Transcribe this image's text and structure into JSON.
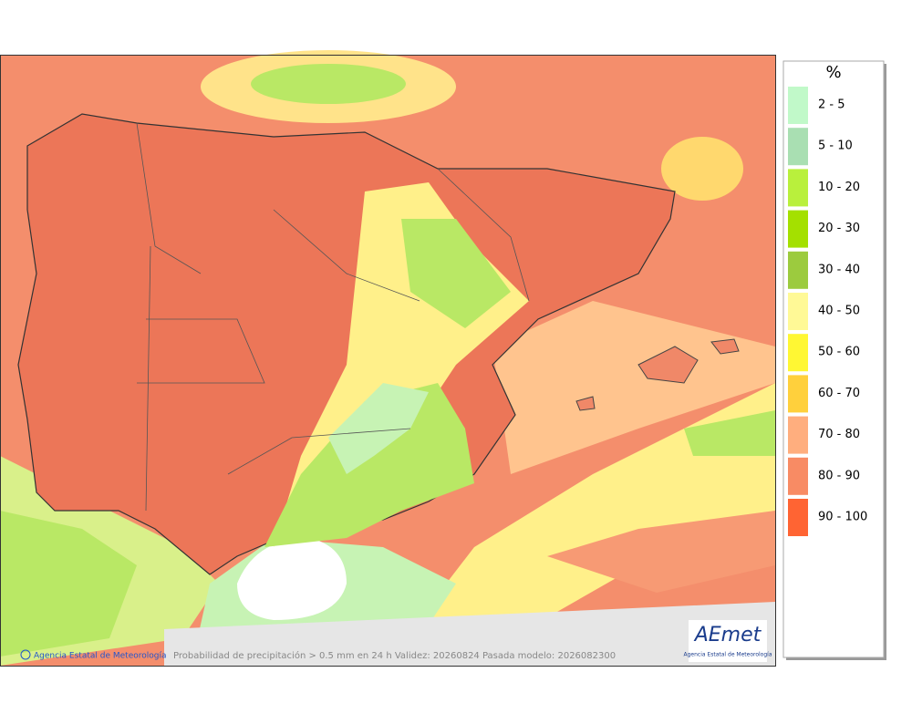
{
  "legend": {
    "title": "%",
    "items": [
      {
        "label": "2 - 5",
        "color": "#c1f9c9"
      },
      {
        "label": "5 - 10",
        "color": "#a9dfb2"
      },
      {
        "label": "10 - 20",
        "color": "#b9f03c"
      },
      {
        "label": "20 - 30",
        "color": "#a4e000"
      },
      {
        "label": "30 - 40",
        "color": "#9ccb3e"
      },
      {
        "label": "40 - 50",
        "color": "#fff996"
      },
      {
        "label": "50 - 60",
        "color": "#fff733"
      },
      {
        "label": "60 - 70",
        "color": "#ffd03c"
      },
      {
        "label": "70 - 80",
        "color": "#ffae7e"
      },
      {
        "label": "80 - 90",
        "color": "#f88b64"
      },
      {
        "label": "90 - 100",
        "color": "#ff6433"
      }
    ]
  },
  "footer": {
    "credit": "Agencia Estatal de Meteorología",
    "caption": "Probabilidad de precipitación > 0.5 mm en 24 h Validez: 20260824 Pasada modelo: 2026082300"
  },
  "logo": {
    "name": "AEmet",
    "subtitle": "Agencia Estatal de Meteorología"
  }
}
